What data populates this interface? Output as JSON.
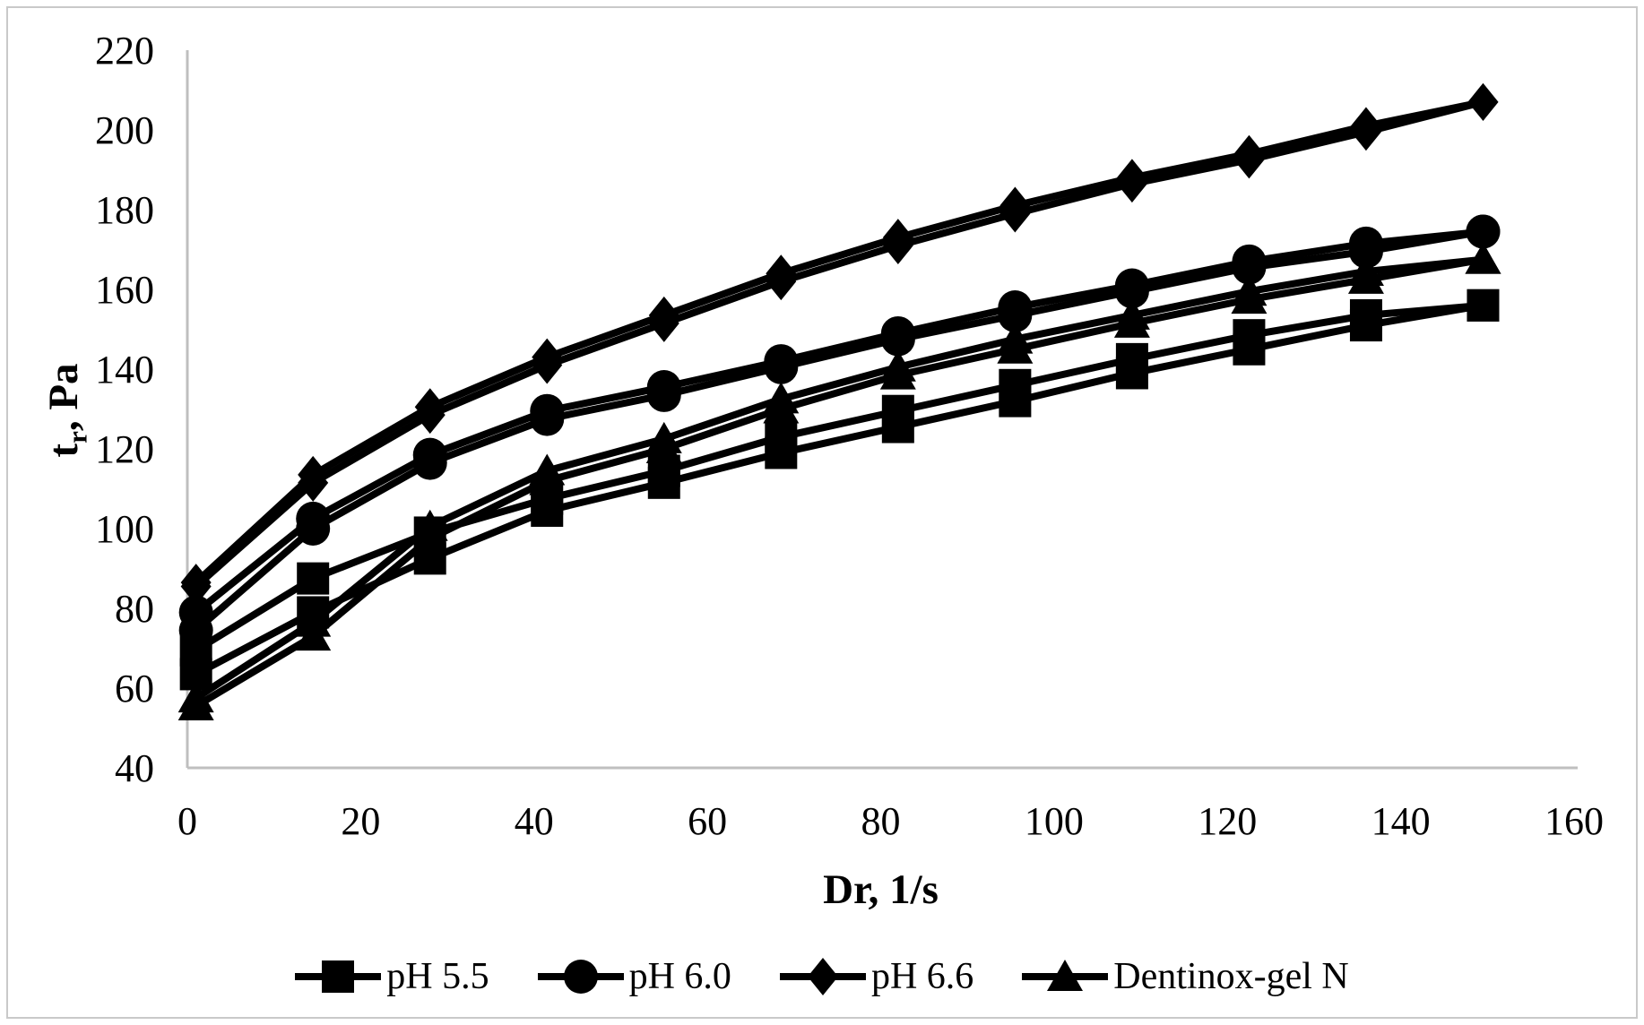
{
  "figure_label": "rheogram-figure",
  "chart_data": {
    "type": "line",
    "title": "",
    "xlabel": "Dr, 1/s",
    "ylabel_parts": [
      {
        "text": "t",
        "sub": false
      },
      {
        "text": "r",
        "sub": true
      },
      {
        "text": ", Pa",
        "sub": false
      }
    ],
    "xlim": [
      0,
      160
    ],
    "ylim": [
      40,
      220
    ],
    "xticks": [
      0,
      20,
      40,
      60,
      80,
      100,
      120,
      140,
      160
    ],
    "yticks": [
      40,
      60,
      80,
      100,
      120,
      140,
      160,
      180,
      200,
      220
    ],
    "grid": false,
    "legend_position": "bottom",
    "colors": {
      "series": "#000000",
      "axis_line": "#bfbfbf",
      "text": "#000000",
      "border": "#c9c9c9",
      "background": "#ffffff"
    },
    "x": [
      1,
      14.5,
      28,
      41.5,
      55,
      68.5,
      82,
      95.5,
      109,
      122.5,
      136,
      149.5
    ],
    "series": [
      {
        "name": "pH 5.5",
        "marker": "square",
        "branches": {
          "up": [
            63.5,
            79,
            92.5,
            104.5,
            111.5,
            119,
            125.5,
            132,
            139,
            145,
            151,
            156
          ],
          "down": [
            69.5,
            87.5,
            99,
            107.5,
            114.5,
            123,
            129.5,
            136,
            142.5,
            148.5,
            153.5,
            156
          ]
        }
      },
      {
        "name": "pH 6.0",
        "marker": "circle",
        "branches": {
          "up": [
            74.5,
            100,
            116.5,
            127.5,
            133.5,
            140.5,
            147.5,
            153.5,
            159.5,
            165.5,
            169.5,
            174.5
          ],
          "down": [
            79,
            102.5,
            118.5,
            129.5,
            135.5,
            142,
            149,
            155.5,
            161,
            167,
            171.5,
            174.5
          ]
        }
      },
      {
        "name": "pH 6.6",
        "marker": "diamond",
        "branches": {
          "up": [
            85.5,
            111.5,
            128.5,
            141,
            151.5,
            162,
            171,
            179,
            186.5,
            192.5,
            199.5,
            207
          ],
          "down": [
            86.5,
            113.5,
            130.5,
            143,
            153.5,
            164,
            173,
            181,
            188,
            194,
            201,
            207
          ]
        }
      },
      {
        "name": "Dentinox-gel N",
        "marker": "triangle",
        "branches": {
          "up": [
            55.5,
            73,
            97.5,
            112,
            120,
            130,
            138.5,
            145,
            151.5,
            157.5,
            162.5,
            167.5
          ],
          "down": [
            57.5,
            76.5,
            100.5,
            114.5,
            122.5,
            132.5,
            140.5,
            147.5,
            153.5,
            159.5,
            164.5,
            167.5
          ]
        }
      }
    ]
  }
}
